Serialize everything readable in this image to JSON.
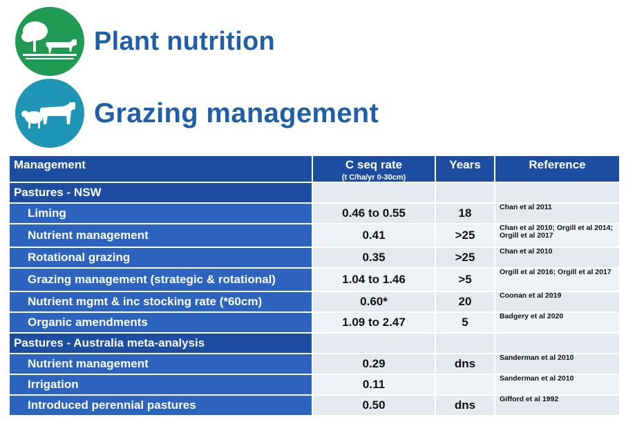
{
  "headings": {
    "plant": "Plant nutrition",
    "grazing": "Grazing management"
  },
  "icons": {
    "plant_badge": "tree-and-cow-icon",
    "grazing_badge": "sheep-and-cow-icon"
  },
  "colors": {
    "heading": "#1f5fa8",
    "green_badge": "#1e9a52",
    "teal_badge": "#1e95b5",
    "table_header": "#1c4da1",
    "row_label": "#2b63bf",
    "cell_bg": "#e4e8ef"
  },
  "table": {
    "headers": {
      "management": "Management",
      "rate": "C seq rate",
      "rate_unit": "(t C/ha/yr 0-30cm)",
      "years": "Years",
      "reference": "Reference"
    },
    "groups": [
      {
        "label": "Pastures - NSW",
        "rows": [
          {
            "management": "Liming",
            "rate": "0.46 to 0.55",
            "years": "18",
            "reference": "Chan et al 2011"
          },
          {
            "management": "Nutrient management",
            "rate": "0.41",
            "years": ">25",
            "reference": "Chan et al 2010; Orgill et al 2014; Orgill et al 2017"
          },
          {
            "management": "Rotational grazing",
            "rate": "0.35",
            "years": ">25",
            "reference": "Chan et al 2010"
          },
          {
            "management": "Grazing management (strategic & rotational)",
            "rate": "1.04 to 1.46",
            "years": ">5",
            "reference": "Orgill et al 2016; Orgill et al 2017"
          },
          {
            "management": "Nutrient mgmt & inc stocking rate (*60cm)",
            "rate": "0.60*",
            "years": "20",
            "reference": "Coonan et al 2019"
          },
          {
            "management": "Organic amendments",
            "rate": "1.09 to 2.47",
            "years": "5",
            "reference": "Badgery et al 2020"
          }
        ]
      },
      {
        "label": "Pastures - Australia meta-analysis",
        "rows": [
          {
            "management": "Nutrient management",
            "rate": "0.29",
            "years": "dns",
            "reference": "Sanderman et al 2010"
          },
          {
            "management": "Irrigation",
            "rate": "0.11",
            "years": "",
            "reference": "Sanderman et al 2010"
          },
          {
            "management": "Introduced perennial pastures",
            "rate": "0.50",
            "years": "dns",
            "reference": "Gifford et al 1992"
          }
        ]
      }
    ]
  }
}
